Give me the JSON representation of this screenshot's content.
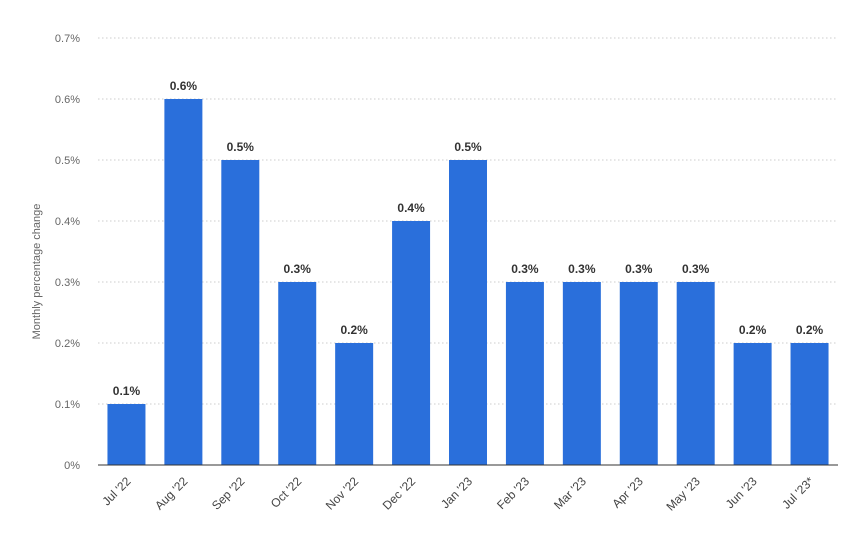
{
  "chart_data": {
    "type": "bar",
    "title": "",
    "xlabel": "",
    "ylabel": "Monthly percentage change",
    "categories": [
      "Jul '22",
      "Aug '22",
      "Sep '22",
      "Oct '22",
      "Nov '22",
      "Dec '22",
      "Jan '23",
      "Feb '23",
      "Mar '23",
      "Apr '23",
      "May '23",
      "Jun '23",
      "Jul '23*"
    ],
    "values": [
      0.1,
      0.6,
      0.5,
      0.3,
      0.2,
      0.4,
      0.5,
      0.3,
      0.3,
      0.3,
      0.3,
      0.2,
      0.2
    ],
    "data_labels": [
      "0.1%",
      "0.6%",
      "0.5%",
      "0.3%",
      "0.2%",
      "0.4%",
      "0.5%",
      "0.3%",
      "0.3%",
      "0.3%",
      "0.3%",
      "0.2%",
      "0.2%"
    ],
    "ylim": [
      0,
      0.7
    ],
    "yticks": [
      0,
      0.1,
      0.2,
      0.3,
      0.4,
      0.5,
      0.6,
      0.7
    ],
    "ytick_labels": [
      "0%",
      "0.1%",
      "0.2%",
      "0.3%",
      "0.4%",
      "0.5%",
      "0.6%",
      "0.7%"
    ],
    "grid": true,
    "legend": "none",
    "colors": {
      "bar": "#2a6fdb",
      "grid": "#cccccc",
      "axis": "#333333"
    }
  }
}
